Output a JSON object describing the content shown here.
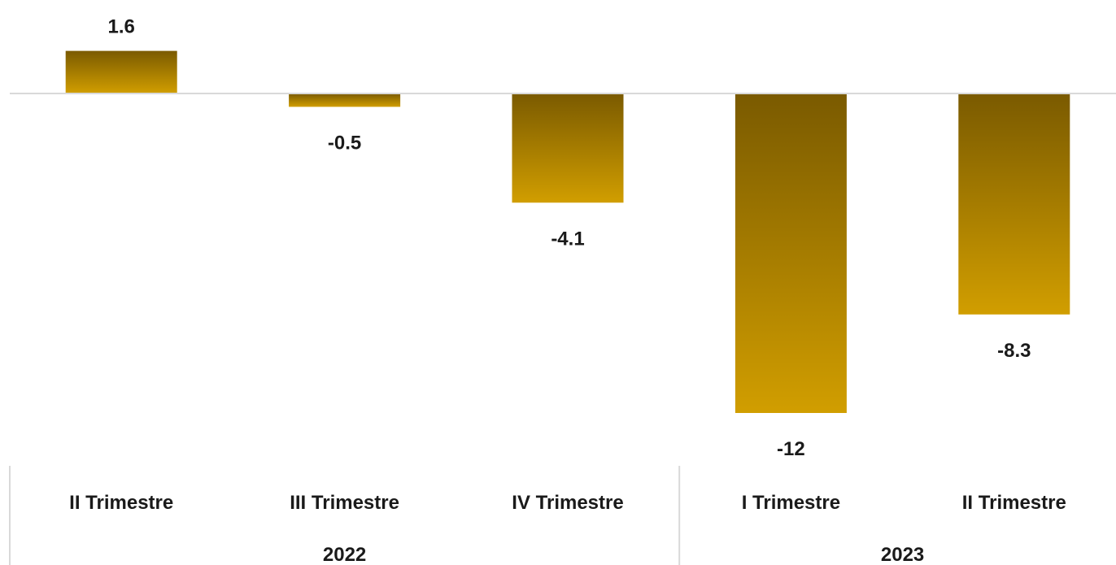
{
  "chart_data": {
    "type": "bar",
    "categories": [
      "II Trimestre",
      "III Trimestre",
      "IV Trimestre",
      "I Trimestre",
      "II Trimestre"
    ],
    "groups": [
      {
        "label": "2022",
        "categories": [
          "II Trimestre",
          "III Trimestre",
          "IV Trimestre"
        ]
      },
      {
        "label": "2023",
        "categories": [
          "I Trimestre",
          "II Trimestre"
        ]
      }
    ],
    "values": [
      1.6,
      -0.5,
      -4.1,
      -12,
      -8.3
    ],
    "value_labels": [
      "1.6",
      "-0.5",
      "-4.1",
      "-12",
      "-8.3"
    ],
    "title": "",
    "xlabel": "",
    "ylabel": "",
    "grid": false,
    "colors": {
      "bar_top": "#7a5a00",
      "bar_bottom": "#d19e00",
      "axis_line": "#d9d9d9",
      "separator": "#d9d9d9",
      "text": "#1a1a1a"
    }
  }
}
